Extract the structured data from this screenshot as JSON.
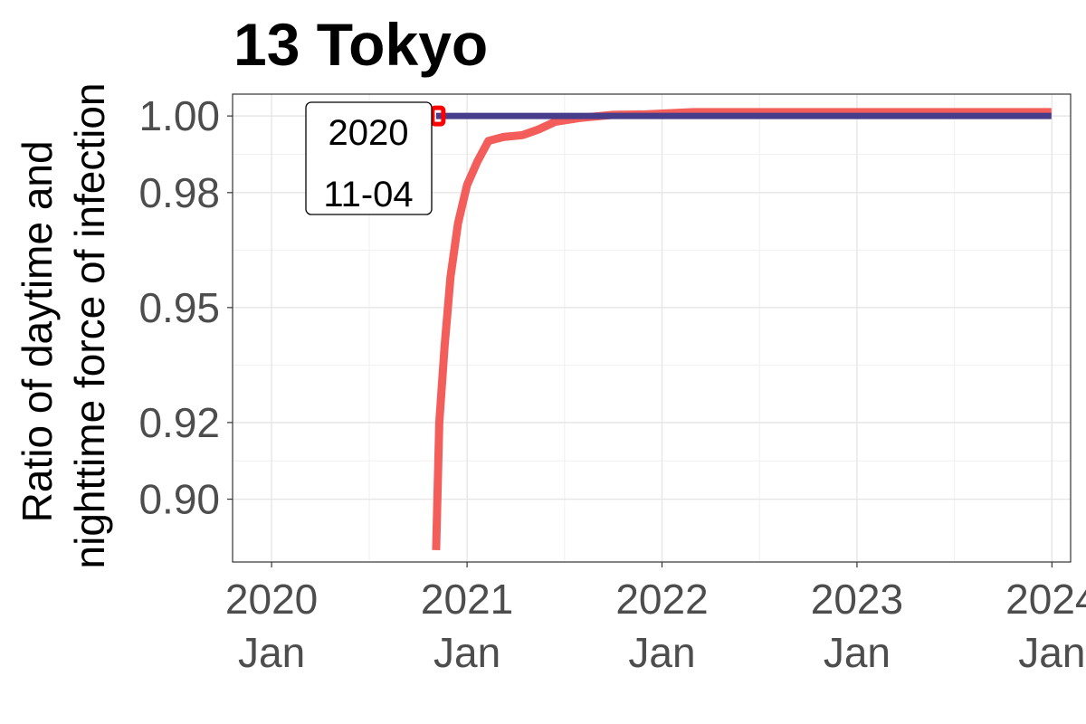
{
  "chart_data": {
    "type": "line",
    "title": "13 Tokyo",
    "xlabel": "",
    "ylabel": [
      "Ratio of daytime and",
      "nighttime force of infection"
    ],
    "xlim": [
      "2019-10-20",
      "2024-02-05"
    ],
    "ylim": [
      0.8836,
      1.0057
    ],
    "grid": true,
    "legend": "none",
    "x_ticks": [
      {
        "date": "2020-01-01",
        "line1": "2020",
        "line2": "Jan"
      },
      {
        "date": "2021-01-01",
        "line1": "2021",
        "line2": "Jan"
      },
      {
        "date": "2022-01-01",
        "line1": "2022",
        "line2": "Jan"
      },
      {
        "date": "2023-01-01",
        "line1": "2023",
        "line2": "Jan"
      },
      {
        "date": "2024-01-01",
        "line1": "2024",
        "line2": "Jan"
      }
    ],
    "y_ticks": [
      {
        "value": 0.9,
        "label": "0.90"
      },
      {
        "value": 0.92,
        "label": "0.92"
      },
      {
        "value": 0.95,
        "label": "0.95"
      },
      {
        "value": 0.98,
        "label": "0.98"
      },
      {
        "value": 1.0,
        "label": "1.00"
      }
    ],
    "series": [
      {
        "color": "#f35e5a",
        "points": [
          {
            "x": "2020-11-04",
            "y": 0.8867
          },
          {
            "x": "2020-11-10",
            "y": 0.92
          },
          {
            "x": "2020-11-20",
            "y": 0.94
          },
          {
            "x": "2020-12-01",
            "y": 0.958
          },
          {
            "x": "2020-12-15",
            "y": 0.972
          },
          {
            "x": "2021-01-01",
            "y": 0.982
          },
          {
            "x": "2021-01-20",
            "y": 0.988
          },
          {
            "x": "2021-02-10",
            "y": 0.9935
          },
          {
            "x": "2021-03-10",
            "y": 0.9945
          },
          {
            "x": "2021-04-15",
            "y": 0.995
          },
          {
            "x": "2021-05-15",
            "y": 0.9965
          },
          {
            "x": "2021-06-15",
            "y": 0.9985
          },
          {
            "x": "2021-08-01",
            "y": 0.9995
          },
          {
            "x": "2021-10-01",
            "y": 1.0003
          },
          {
            "x": "2021-12-01",
            "y": 1.0004
          },
          {
            "x": "2022-03-01",
            "y": 1.001
          },
          {
            "x": "2022-07-01",
            "y": 1.001
          },
          {
            "x": "2023-01-01",
            "y": 1.001
          },
          {
            "x": "2023-07-01",
            "y": 1.001
          },
          {
            "x": "2023-12-31",
            "y": 1.001
          }
        ]
      },
      {
        "color": "#483d8b",
        "points": [
          {
            "x": "2020-11-04",
            "y": 1.0
          },
          {
            "x": "2023-12-31",
            "y": 1.0
          }
        ]
      }
    ],
    "annotation": {
      "line1": "2020",
      "line2": "11-04",
      "x": "2020-11-04",
      "y": 1.0,
      "marker_color": "#ff0000"
    }
  }
}
